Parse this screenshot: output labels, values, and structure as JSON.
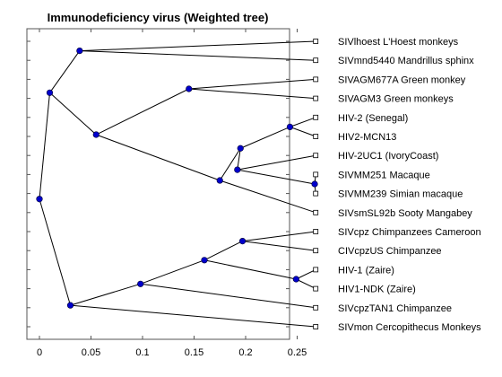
{
  "title": "Immunodeficiency virus (Weighted tree)",
  "chart_data": {
    "type": "phylogenetic-tree",
    "orientation": "horizontal",
    "xlim": [
      -0.015,
      0.27
    ],
    "x_ticks": [
      0,
      0.05,
      0.1,
      0.15,
      0.2,
      0.25
    ],
    "x_tick_labels": [
      "0",
      "0.05",
      "0.1",
      "0.15",
      "0.2",
      "0.25"
    ],
    "grid": false,
    "leaves": [
      {
        "label": "SIVlhoest L'Hoest monkeys",
        "x": 0.268
      },
      {
        "label": "SIVmnd5440 Mandrillus sphinx",
        "x": 0.268
      },
      {
        "label": "SIVAGM677A Green monkey",
        "x": 0.268
      },
      {
        "label": "SIVAGM3 Green monkeys",
        "x": 0.268
      },
      {
        "label": "HIV-2 (Senegal)",
        "x": 0.268
      },
      {
        "label": "HIV2-MCN13",
        "x": 0.268
      },
      {
        "label": "HIV-2UC1 (IvoryCoast)",
        "x": 0.268
      },
      {
        "label": "SIVMM251 Macaque",
        "x": 0.268
      },
      {
        "label": "SIVMM239 Simian macaque",
        "x": 0.268
      },
      {
        "label": "SIVsmSL92b Sooty Mangabey",
        "x": 0.268
      },
      {
        "label": "SIVcpz Chimpanzees Cameroon",
        "x": 0.268
      },
      {
        "label": "CIVcpzUS Chimpanzee",
        "x": 0.268
      },
      {
        "label": "HIV-1 (Zaire)",
        "x": 0.268
      },
      {
        "label": "HIV1-NDK (Zaire)",
        "x": 0.268
      },
      {
        "label": "SIVcpzTAN1 Chimpanzee",
        "x": 0.268
      },
      {
        "label": "SIVmon Cercopithecus Monkeys",
        "x": 0.268
      }
    ],
    "internal_nodes": [
      {
        "id": "n1",
        "x": 0.039,
        "children": [
          "L0",
          "L1"
        ]
      },
      {
        "id": "n2",
        "x": 0.145,
        "children": [
          "L2",
          "L3"
        ]
      },
      {
        "id": "n3",
        "x": 0.243,
        "children": [
          "L4",
          "L5"
        ]
      },
      {
        "id": "n4",
        "x": 0.267,
        "children": [
          "L7",
          "L8"
        ]
      },
      {
        "id": "n5",
        "x": 0.192,
        "children": [
          "L6",
          "n4"
        ]
      },
      {
        "id": "n6",
        "x": 0.195,
        "children": [
          "n3",
          "n5"
        ]
      },
      {
        "id": "n7",
        "x": 0.175,
        "children": [
          "n6",
          "L9"
        ]
      },
      {
        "id": "n8",
        "x": 0.055,
        "children": [
          "n2",
          "n7"
        ]
      },
      {
        "id": "n9",
        "x": 0.01,
        "children": [
          "n1",
          "n8"
        ]
      },
      {
        "id": "n10",
        "x": 0.197,
        "children": [
          "L10",
          "L11"
        ]
      },
      {
        "id": "n11",
        "x": 0.249,
        "children": [
          "L12",
          "L13"
        ]
      },
      {
        "id": "n12",
        "x": 0.16,
        "children": [
          "n10",
          "n11"
        ]
      },
      {
        "id": "n13",
        "x": 0.098,
        "children": [
          "n12",
          "L14"
        ]
      },
      {
        "id": "n14",
        "x": 0.03,
        "children": [
          "n13",
          "L15"
        ]
      },
      {
        "id": "n15",
        "x": 0.0,
        "children": [
          "n9",
          "n14"
        ]
      }
    ]
  },
  "colors": {
    "node_fill": "#0000cc",
    "leaf_fill": "#ffffff",
    "line": "#000000"
  }
}
